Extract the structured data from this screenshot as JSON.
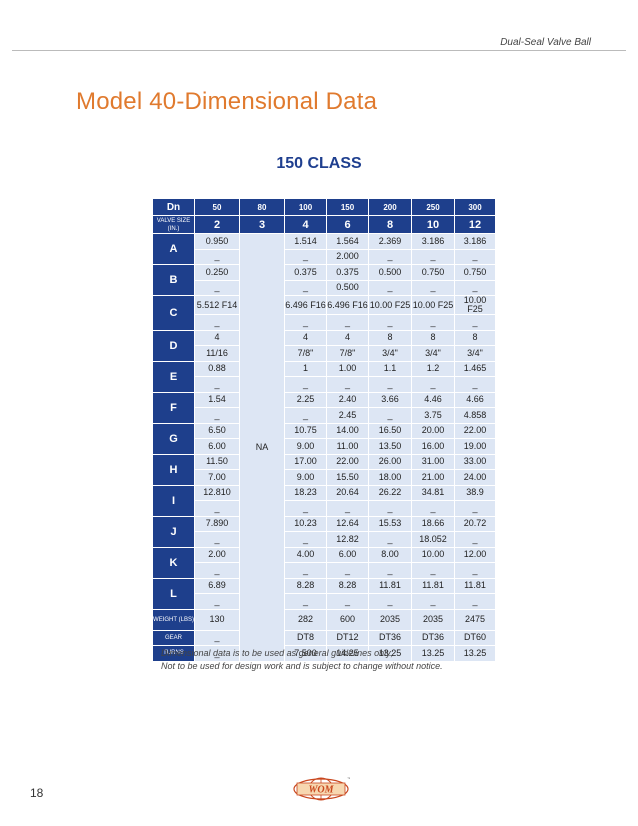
{
  "header": {
    "brand_text": "Dual-Seal Valve Ball"
  },
  "title": "Model 40-Dimensional Data",
  "class_title": "150 CLASS",
  "table": {
    "corner_label": "Dn",
    "dn_values": [
      "50",
      "80",
      "100",
      "150",
      "200",
      "250",
      "300"
    ],
    "size_label": "VALVE SIZE (IN.)",
    "sizes": [
      "2",
      "3",
      "4",
      "6",
      "8",
      "10",
      "12"
    ],
    "na_label": "NA",
    "rows": [
      {
        "label": "A",
        "top": [
          "0.950",
          "1.514",
          "1.564",
          "2.369",
          "3.186",
          "3.186"
        ],
        "bottom": [
          "_",
          "_",
          "2.000",
          "_",
          "_",
          "_"
        ]
      },
      {
        "label": "B",
        "top": [
          "0.250",
          "0.375",
          "0.375",
          "0.500",
          "0.750",
          "0.750"
        ],
        "bottom": [
          "_",
          "_",
          "0.500",
          "_",
          "_",
          "_"
        ]
      },
      {
        "label": "C",
        "top": [
          "5.512 F14",
          "6.496 F16",
          "6.496 F16",
          "10.00 F25",
          "10.00 F25",
          "10.00 F25"
        ],
        "bottom": [
          "_",
          "_",
          "_",
          "_",
          "_",
          "_"
        ]
      },
      {
        "label": "D",
        "top": [
          "4",
          "4",
          "4",
          "8",
          "8",
          "8"
        ],
        "bottom": [
          "11/16",
          "7/8\"",
          "7/8\"",
          "3/4\"",
          "3/4\"",
          "3/4\""
        ]
      },
      {
        "label": "E",
        "top": [
          "0.88",
          "1",
          "1.00",
          "1.1",
          "1.2",
          "1.465"
        ],
        "bottom": [
          "_",
          "_",
          "_",
          "_",
          "_",
          "_"
        ]
      },
      {
        "label": "F",
        "top": [
          "1.54",
          "2.25",
          "2.40",
          "3.66",
          "4.46",
          "4.66"
        ],
        "bottom": [
          "_",
          "_",
          "2.45",
          "_",
          "3.75",
          "4.858"
        ]
      },
      {
        "label": "G",
        "top": [
          "6.50",
          "10.75",
          "14.00",
          "16.50",
          "20.00",
          "22.00"
        ],
        "bottom": [
          "6.00",
          "9.00",
          "11.00",
          "13.50",
          "16.00",
          "19.00"
        ]
      },
      {
        "label": "H",
        "top": [
          "11.50",
          "17.00",
          "22.00",
          "26.00",
          "31.00",
          "33.00"
        ],
        "bottom": [
          "7.00",
          "9.00",
          "15.50",
          "18.00",
          "21.00",
          "24.00"
        ]
      },
      {
        "label": "I",
        "top": [
          "12.810",
          "18.23",
          "20.64",
          "26.22",
          "34.81",
          "38.9"
        ],
        "bottom": [
          "_",
          "_",
          "_",
          "_",
          "_",
          "_"
        ]
      },
      {
        "label": "J",
        "top": [
          "7.890",
          "10.23",
          "12.64",
          "15.53",
          "18.66",
          "20.72"
        ],
        "bottom": [
          "_",
          "_",
          "12.82",
          "_",
          "18.052",
          "_"
        ]
      },
      {
        "label": "K",
        "top": [
          "2.00",
          "4.00",
          "6.00",
          "8.00",
          "10.00",
          "12.00"
        ],
        "bottom": [
          "_",
          "_",
          "_",
          "_",
          "_",
          "_"
        ]
      },
      {
        "label": "L",
        "top": [
          "6.89",
          "8.28",
          "8.28",
          "11.81",
          "11.81",
          "11.81"
        ],
        "bottom": [
          "_",
          "_",
          "_",
          "_",
          "_",
          "_"
        ]
      }
    ],
    "weight_label": "WEIGHT (LBS)",
    "weight": [
      "130",
      "282",
      "600",
      "2035",
      "2035",
      "2475"
    ],
    "gear_label": "GEAR",
    "gear": [
      "_",
      "DT8",
      "DT12",
      "DT36",
      "DT36",
      "DT60"
    ],
    "turns_label": "TURNS",
    "turns": [
      "_",
      "7.500",
      "14.25",
      "13.25",
      "13.25",
      "13.25"
    ]
  },
  "footnote": {
    "line1": "Dimensional data is to be used as general guidelines only;",
    "line2": "Not to be used for design work and is subject to change without notice."
  },
  "page_number": "18",
  "logo": {
    "text": "WOM",
    "tm": "™"
  },
  "colors": {
    "accent_orange": "#e07a2e",
    "table_blue": "#1e3f8c",
    "cell_fill": "#dde6f4",
    "class_blue": "#1f3f8f"
  }
}
